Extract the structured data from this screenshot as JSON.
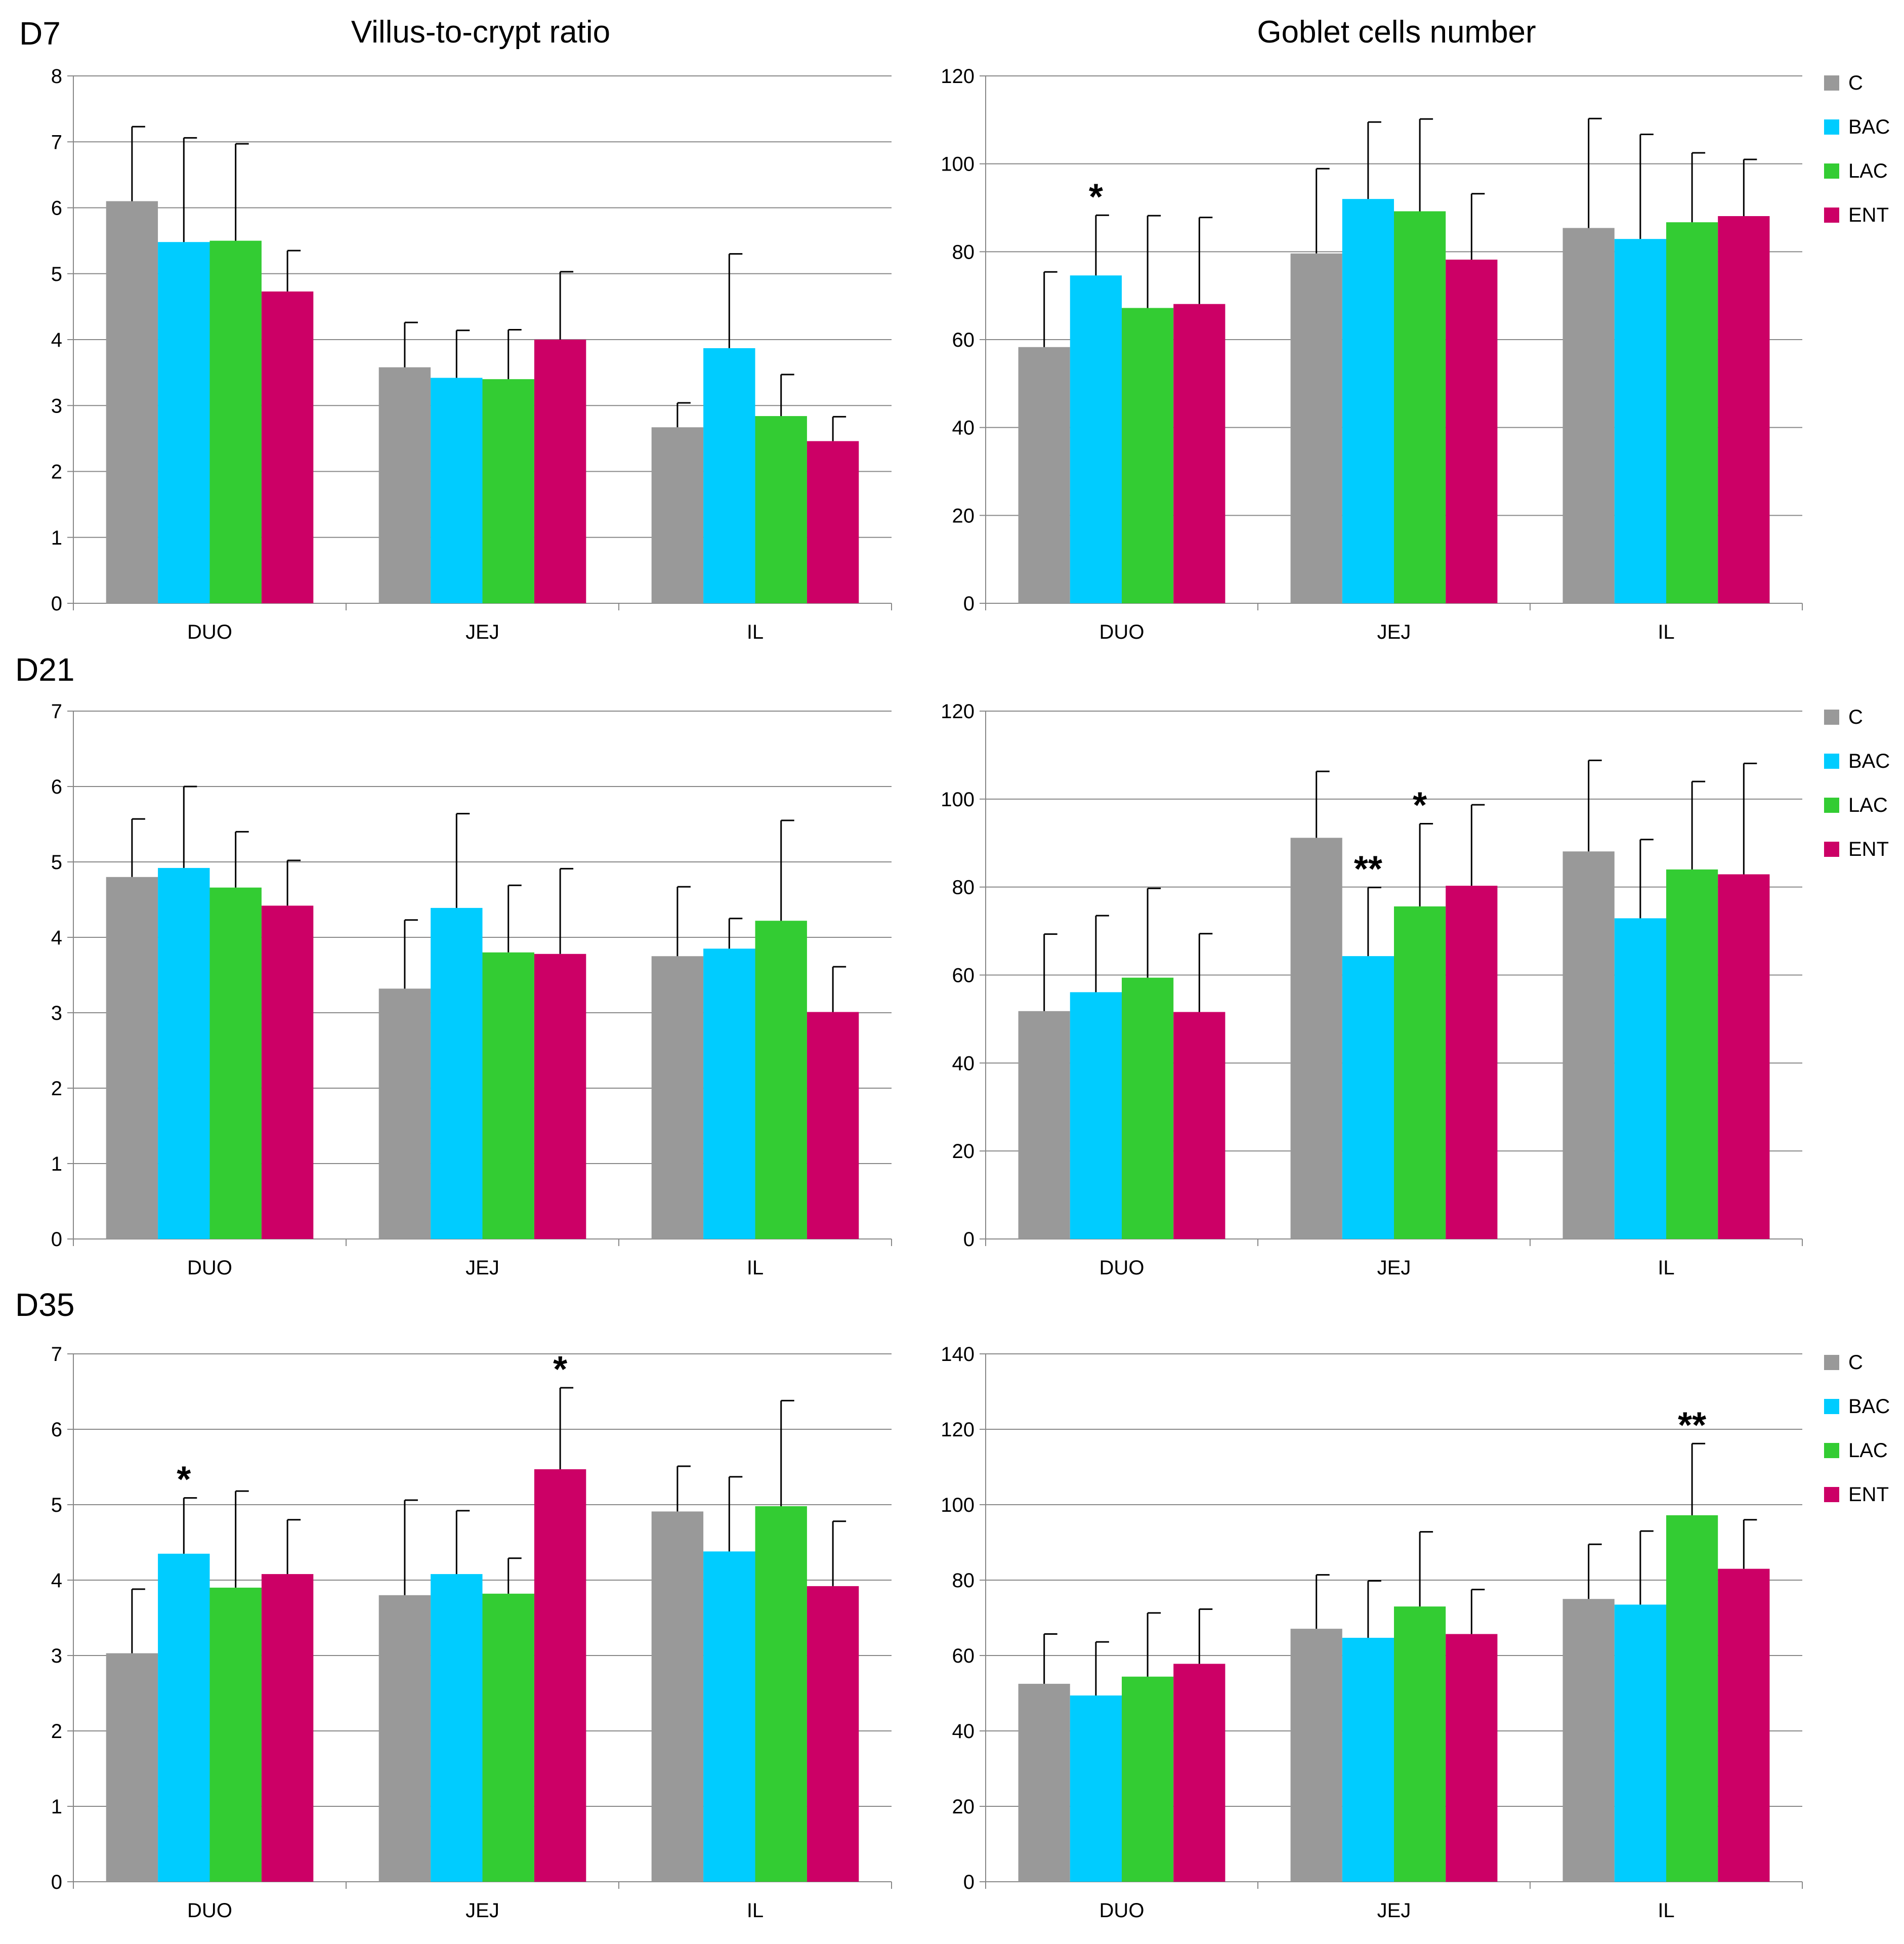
{
  "figure": {
    "column_titles": [
      "Villus-to-crypt ratio",
      "Goblet cells number"
    ],
    "row_labels": [
      "D7",
      "D21",
      "D35"
    ]
  },
  "legend": [
    {
      "label": "C",
      "color": "#999999"
    },
    {
      "label": "BAC",
      "color": "#00CCFF"
    },
    {
      "label": "LAC",
      "color": "#33CC33"
    },
    {
      "label": "ENT",
      "color": "#CC0066"
    }
  ],
  "chart_data": [
    {
      "id": "d7-vc",
      "type": "bar",
      "title": "Villus-to-crypt ratio",
      "row": "D7",
      "categories": [
        "DUO",
        "JEJ",
        "IL"
      ],
      "ylim": [
        0,
        8
      ],
      "yticks": [
        0,
        1,
        2,
        3,
        4,
        5,
        6,
        7,
        8
      ],
      "series": [
        {
          "name": "C",
          "values": [
            6.1,
            3.58,
            2.67
          ],
          "errors": [
            1.13,
            0.68,
            0.37
          ]
        },
        {
          "name": "BAC",
          "values": [
            5.48,
            3.42,
            3.87
          ],
          "errors": [
            1.58,
            0.72,
            1.43
          ]
        },
        {
          "name": "LAC",
          "values": [
            5.5,
            3.4,
            2.84
          ],
          "errors": [
            1.47,
            0.75,
            0.63
          ]
        },
        {
          "name": "ENT",
          "values": [
            4.73,
            4.0,
            2.46
          ],
          "errors": [
            0.62,
            1.03,
            0.37
          ]
        }
      ],
      "annotations": []
    },
    {
      "id": "d7-gc",
      "type": "bar",
      "title": "Goblet cells number",
      "row": "D7",
      "categories": [
        "DUO",
        "JEJ",
        "IL"
      ],
      "ylim": [
        0,
        120
      ],
      "yticks": [
        0,
        20,
        40,
        60,
        80,
        100,
        120
      ],
      "series": [
        {
          "name": "C",
          "values": [
            58.3,
            79.6,
            85.4
          ],
          "errors": [
            17.1,
            19.3,
            24.9
          ]
        },
        {
          "name": "BAC",
          "values": [
            74.6,
            92.0,
            82.9
          ],
          "errors": [
            13.7,
            17.5,
            23.8
          ]
        },
        {
          "name": "LAC",
          "values": [
            67.2,
            89.2,
            86.7
          ],
          "errors": [
            21.0,
            21.0,
            15.8
          ]
        },
        {
          "name": "ENT",
          "values": [
            68.1,
            78.2,
            88.1
          ],
          "errors": [
            19.7,
            15.0,
            12.9
          ]
        }
      ],
      "annotations": [
        {
          "category": 0,
          "series": 1,
          "text": "*"
        }
      ]
    },
    {
      "id": "d21-vc",
      "type": "bar",
      "title": "Villus-to-crypt ratio",
      "row": "D21",
      "categories": [
        "DUO",
        "JEJ",
        "IL"
      ],
      "ylim": [
        0,
        7
      ],
      "yticks": [
        0,
        1,
        2,
        3,
        4,
        5,
        6,
        7
      ],
      "series": [
        {
          "name": "C",
          "values": [
            4.8,
            3.32,
            3.75
          ],
          "errors": [
            0.77,
            0.91,
            0.92
          ]
        },
        {
          "name": "BAC",
          "values": [
            4.92,
            4.39,
            3.85
          ],
          "errors": [
            1.08,
            1.25,
            0.4
          ]
        },
        {
          "name": "LAC",
          "values": [
            4.66,
            3.8,
            4.22
          ],
          "errors": [
            0.74,
            0.89,
            1.33
          ]
        },
        {
          "name": "ENT",
          "values": [
            4.42,
            3.78,
            3.01
          ],
          "errors": [
            0.6,
            1.13,
            0.6
          ]
        }
      ],
      "annotations": []
    },
    {
      "id": "d21-gc",
      "type": "bar",
      "title": "Goblet cells number",
      "row": "D21",
      "categories": [
        "DUO",
        "JEJ",
        "IL"
      ],
      "ylim": [
        0,
        120
      ],
      "yticks": [
        0,
        20,
        40,
        60,
        80,
        100,
        120
      ],
      "series": [
        {
          "name": "C",
          "values": [
            51.8,
            91.2,
            88.1
          ],
          "errors": [
            17.5,
            15.1,
            20.7
          ]
        },
        {
          "name": "BAC",
          "values": [
            56.1,
            64.3,
            72.9
          ],
          "errors": [
            17.4,
            15.6,
            17.9
          ]
        },
        {
          "name": "LAC",
          "values": [
            59.4,
            75.6,
            84.0
          ],
          "errors": [
            20.3,
            18.8,
            20.0
          ]
        },
        {
          "name": "ENT",
          "values": [
            51.6,
            80.3,
            82.9
          ],
          "errors": [
            17.8,
            18.4,
            25.2
          ]
        }
      ],
      "annotations": [
        {
          "category": 1,
          "series": 1,
          "text": "**"
        },
        {
          "category": 1,
          "series": 2,
          "text": "*"
        }
      ]
    },
    {
      "id": "d35-vc",
      "type": "bar",
      "title": "Villus-to-crypt ratio",
      "row": "D35",
      "categories": [
        "DUO",
        "JEJ",
        "IL"
      ],
      "ylim": [
        0,
        7
      ],
      "yticks": [
        0,
        1,
        2,
        3,
        4,
        5,
        6,
        7
      ],
      "series": [
        {
          "name": "C",
          "values": [
            3.03,
            3.8,
            4.91
          ],
          "errors": [
            0.85,
            1.26,
            0.6
          ]
        },
        {
          "name": "BAC",
          "values": [
            4.35,
            4.08,
            4.38
          ],
          "errors": [
            0.74,
            0.84,
            0.99
          ]
        },
        {
          "name": "LAC",
          "values": [
            3.9,
            3.82,
            4.98
          ],
          "errors": [
            1.28,
            0.47,
            1.4
          ]
        },
        {
          "name": "ENT",
          "values": [
            4.08,
            5.47,
            3.92
          ],
          "errors": [
            0.72,
            1.08,
            0.86
          ]
        }
      ],
      "annotations": [
        {
          "category": 0,
          "series": 1,
          "text": "*"
        },
        {
          "category": 1,
          "series": 3,
          "text": "*"
        }
      ]
    },
    {
      "id": "d35-gc",
      "type": "bar",
      "title": "Goblet cells number",
      "row": "D35",
      "categories": [
        "DUO",
        "JEJ",
        "IL"
      ],
      "ylim": [
        0,
        140
      ],
      "yticks": [
        0,
        20,
        40,
        60,
        80,
        100,
        120,
        140
      ],
      "series": [
        {
          "name": "C",
          "values": [
            52.5,
            67.1,
            75.0
          ],
          "errors": [
            13.2,
            14.3,
            14.5
          ]
        },
        {
          "name": "BAC",
          "values": [
            49.4,
            64.7,
            73.5
          ],
          "errors": [
            14.2,
            15.1,
            19.5
          ]
        },
        {
          "name": "LAC",
          "values": [
            54.4,
            73.0,
            97.2
          ],
          "errors": [
            16.9,
            19.8,
            19.0
          ]
        },
        {
          "name": "ENT",
          "values": [
            57.8,
            65.7,
            83.0
          ],
          "errors": [
            14.5,
            11.8,
            13.0
          ]
        }
      ],
      "annotations": [
        {
          "category": 2,
          "series": 2,
          "text": "**"
        }
      ]
    }
  ]
}
